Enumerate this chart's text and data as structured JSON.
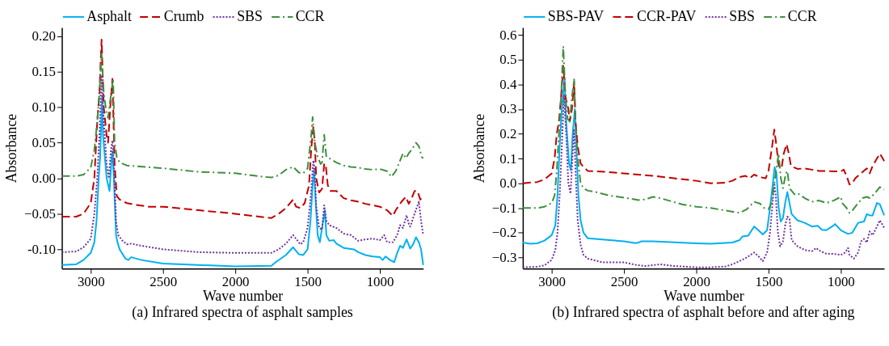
{
  "chart_data": [
    {
      "type": "line",
      "title": "(a) Infrared spectra of asphalt samples",
      "xlabel": "Wave number",
      "ylabel": "Absorbance",
      "legend": "top",
      "grid": false,
      "xlim": [
        3200,
        700
      ],
      "xticks": [
        3000,
        2500,
        2000,
        1500,
        1000
      ],
      "ylim": [
        -0.127,
        0.212
      ],
      "yticks": [
        {
          "value": -0.1,
          "label": "-0.10"
        },
        -0.05,
        {
          "value": 0,
          "label": "0.00"
        },
        0.05,
        {
          "value": 0.1,
          "label": "0.10"
        },
        0.15,
        {
          "value": 0.2,
          "label": "0.20"
        }
      ],
      "series": [
        {
          "name": "Asphalt",
          "color": "#00b0f0",
          "line_style": "solid",
          "x": [
            3200,
            3100,
            3050,
            3000,
            2975,
            2960,
            2945,
            2935,
            2921,
            2915,
            2890,
            2870,
            2855,
            2850,
            2840,
            2825,
            2815,
            2800,
            2760,
            2740,
            2720,
            2650,
            2500,
            2000,
            1750,
            1720,
            1650,
            1600,
            1560,
            1530,
            1500,
            1480,
            1465,
            1455,
            1445,
            1430,
            1415,
            1400,
            1380,
            1370,
            1350,
            1320,
            1300,
            1250,
            1180,
            1150,
            1100,
            1050,
            1000,
            980,
            960,
            930,
            900,
            880,
            860,
            840,
            815,
            790,
            770,
            750,
            730,
            715,
            700
          ],
          "values": [
            -0.122,
            -0.121,
            -0.115,
            -0.105,
            -0.09,
            -0.06,
            0.0,
            0.03,
            0.116,
            0.06,
            0.0,
            -0.018,
            0.03,
            0.038,
            0.0,
            -0.08,
            -0.09,
            -0.1,
            -0.113,
            -0.115,
            -0.111,
            -0.115,
            -0.12,
            -0.124,
            -0.123,
            -0.118,
            -0.108,
            -0.097,
            -0.107,
            -0.108,
            -0.1,
            -0.06,
            -0.01,
            0.012,
            -0.03,
            -0.08,
            -0.09,
            -0.07,
            -0.045,
            -0.08,
            -0.088,
            -0.087,
            -0.092,
            -0.098,
            -0.1,
            -0.104,
            -0.108,
            -0.11,
            -0.111,
            -0.115,
            -0.11,
            -0.115,
            -0.118,
            -0.105,
            -0.095,
            -0.098,
            -0.086,
            -0.099,
            -0.093,
            -0.083,
            -0.09,
            -0.1,
            -0.122
          ]
        },
        {
          "name": "Crumb",
          "color": "#c00000",
          "line_style": "dashed",
          "x": [
            3200,
            3100,
            3050,
            3000,
            2975,
            2955,
            2940,
            2925,
            2910,
            2890,
            2880,
            2865,
            2850,
            2845,
            2835,
            2820,
            2800,
            2750,
            2700,
            2600,
            2500,
            2250,
            2000,
            1800,
            1750,
            1700,
            1650,
            1600,
            1580,
            1550,
            1520,
            1490,
            1475,
            1460,
            1450,
            1440,
            1420,
            1400,
            1385,
            1375,
            1360,
            1340,
            1300,
            1250,
            1200,
            1150,
            1100,
            1050,
            1000,
            950,
            910,
            890,
            850,
            820,
            800,
            780,
            760,
            740,
            720,
            700
          ],
          "values": [
            -0.054,
            -0.054,
            -0.05,
            -0.035,
            0.0,
            0.08,
            0.12,
            0.195,
            0.1,
            0.06,
            0.05,
            0.1,
            0.14,
            0.1,
            0.02,
            -0.025,
            -0.03,
            -0.035,
            -0.037,
            -0.04,
            -0.04,
            -0.045,
            -0.05,
            -0.055,
            -0.056,
            -0.05,
            -0.042,
            -0.03,
            -0.04,
            -0.042,
            -0.035,
            -0.01,
            0.04,
            0.073,
            0.05,
            0.0,
            -0.02,
            -0.015,
            0.02,
            0.02,
            -0.01,
            -0.018,
            -0.018,
            -0.028,
            -0.031,
            -0.033,
            -0.036,
            -0.038,
            -0.04,
            -0.045,
            -0.053,
            -0.045,
            -0.033,
            -0.026,
            -0.036,
            -0.028,
            -0.018,
            -0.018,
            -0.03,
            -0.025
          ]
        },
        {
          "name": "SBS",
          "color": "#7030a0",
          "line_style": "dotted",
          "x": [
            3200,
            3100,
            3050,
            3000,
            2975,
            2955,
            2940,
            2925,
            2910,
            2890,
            2875,
            2860,
            2850,
            2840,
            2825,
            2810,
            2780,
            2750,
            2720,
            2650,
            2500,
            2250,
            2000,
            1750,
            1700,
            1650,
            1600,
            1580,
            1550,
            1530,
            1500,
            1480,
            1460,
            1450,
            1440,
            1420,
            1400,
            1385,
            1370,
            1350,
            1300,
            1250,
            1200,
            1150,
            1100,
            1050,
            1000,
            970,
            950,
            910,
            880,
            860,
            840,
            815,
            800,
            790,
            760,
            730,
            715,
            700
          ],
          "values": [
            -0.104,
            -0.103,
            -0.097,
            -0.085,
            -0.05,
            0.0,
            0.06,
            0.145,
            0.08,
            0.02,
            0.0,
            0.04,
            0.053,
            0.02,
            -0.06,
            -0.08,
            -0.088,
            -0.093,
            -0.092,
            -0.095,
            -0.1,
            -0.104,
            -0.105,
            -0.105,
            -0.1,
            -0.092,
            -0.08,
            -0.085,
            -0.093,
            -0.09,
            -0.07,
            -0.03,
            0.025,
            0.01,
            -0.04,
            -0.07,
            -0.072,
            -0.038,
            -0.06,
            -0.066,
            -0.07,
            -0.078,
            -0.08,
            -0.088,
            -0.086,
            -0.085,
            -0.087,
            -0.08,
            -0.09,
            -0.09,
            -0.08,
            -0.066,
            -0.07,
            -0.052,
            -0.064,
            -0.068,
            -0.05,
            -0.033,
            -0.06,
            -0.08
          ]
        },
        {
          "name": "CCR",
          "color": "#3f8f3f",
          "line_style": "dashdot",
          "x": [
            3200,
            3100,
            3050,
            3000,
            2975,
            2955,
            2940,
            2925,
            2910,
            2890,
            2880,
            2865,
            2845,
            2835,
            2820,
            2800,
            2750,
            2500,
            2250,
            2000,
            1800,
            1750,
            1700,
            1650,
            1600,
            1560,
            1530,
            1500,
            1475,
            1465,
            1450,
            1430,
            1410,
            1400,
            1385,
            1370,
            1340,
            1300,
            1250,
            1200,
            1150,
            1100,
            1050,
            1000,
            950,
            920,
            890,
            860,
            840,
            820,
            800,
            780,
            750,
            730,
            710,
            700
          ],
          "values": [
            0.003,
            0.003,
            0.005,
            0.015,
            0.04,
            0.08,
            0.12,
            0.175,
            0.12,
            0.09,
            0.085,
            0.11,
            0.14,
            0.05,
            0.03,
            0.022,
            0.018,
            0.014,
            0.009,
            0.007,
            0.002,
            0.001,
            0.004,
            0.012,
            0.016,
            0.008,
            0.007,
            0.014,
            0.06,
            0.086,
            0.05,
            0.03,
            0.02,
            0.022,
            0.061,
            0.03,
            0.027,
            0.022,
            0.018,
            0.016,
            0.015,
            0.013,
            0.012,
            0.013,
            0.01,
            0.002,
            0.01,
            0.025,
            0.035,
            0.028,
            0.035,
            0.04,
            0.05,
            0.045,
            0.03,
            0.028
          ]
        }
      ]
    },
    {
      "type": "line",
      "title": "(b) Infrared spectra of asphalt before and after aging",
      "xlabel": "Wave number",
      "ylabel": "Absorbance",
      "legend": "top",
      "grid": false,
      "xlim": [
        3200,
        700
      ],
      "xticks": [
        3000,
        2500,
        2000,
        1500,
        1000
      ],
      "ylim": [
        -0.345,
        0.63
      ],
      "yticks": [
        -0.3,
        -0.2,
        -0.1,
        {
          "value": 0,
          "label": "0.0"
        },
        0.1,
        0.2,
        0.3,
        0.4,
        0.5,
        0.6
      ],
      "series": [
        {
          "name": "SBS-PAV",
          "color": "#00b0f0",
          "line_style": "solid",
          "x": [
            3200,
            3150,
            3100,
            3050,
            3000,
            2975,
            2960,
            2945,
            2930,
            2911,
            2900,
            2880,
            2868,
            2855,
            2840,
            2830,
            2815,
            2800,
            2780,
            2750,
            2600,
            2500,
            2420,
            2400,
            2380,
            2300,
            2000,
            1900,
            1750,
            1700,
            1680,
            1640,
            1600,
            1570,
            1540,
            1510,
            1490,
            1470,
            1458,
            1445,
            1430,
            1415,
            1400,
            1385,
            1370,
            1355,
            1340,
            1300,
            1250,
            1200,
            1160,
            1130,
            1100,
            1060,
            1040,
            1000,
            950,
            920,
            880,
            840,
            820,
            800,
            780,
            750,
            730,
            700
          ],
          "values": [
            -0.24,
            -0.245,
            -0.243,
            -0.232,
            -0.21,
            -0.17,
            -0.05,
            0.15,
            0.3,
            0.427,
            0.25,
            0.08,
            0.053,
            0.2,
            0.3,
            0.15,
            -0.05,
            -0.15,
            -0.2,
            -0.223,
            -0.23,
            -0.235,
            -0.242,
            -0.24,
            -0.235,
            -0.235,
            -0.243,
            -0.245,
            -0.24,
            -0.23,
            -0.215,
            -0.212,
            -0.175,
            -0.19,
            -0.207,
            -0.19,
            -0.1,
            0.0,
            0.065,
            0.04,
            -0.1,
            -0.155,
            -0.14,
            -0.08,
            -0.035,
            -0.08,
            -0.125,
            -0.15,
            -0.16,
            -0.175,
            -0.172,
            -0.188,
            -0.19,
            -0.175,
            -0.165,
            -0.19,
            -0.205,
            -0.2,
            -0.16,
            -0.155,
            -0.125,
            -0.13,
            -0.13,
            -0.08,
            -0.085,
            -0.13
          ]
        },
        {
          "name": "CCR-PAV",
          "color": "#c00000",
          "line_style": "dashed",
          "x": [
            3200,
            3100,
            3050,
            3000,
            2980,
            2965,
            2950,
            2935,
            2920,
            2905,
            2885,
            2875,
            2860,
            2845,
            2835,
            2820,
            2800,
            2780,
            2750,
            2600,
            2500,
            2300,
            2000,
            1900,
            1800,
            1750,
            1700,
            1660,
            1630,
            1600,
            1560,
            1520,
            1500,
            1475,
            1460,
            1445,
            1430,
            1410,
            1395,
            1375,
            1360,
            1345,
            1300,
            1250,
            1200,
            1150,
            1100,
            1050,
            1000,
            980,
            960,
            940,
            920,
            900,
            860,
            820,
            800,
            780,
            750,
            730,
            710,
            700
          ],
          "values": [
            0.0,
            0.005,
            0.015,
            0.04,
            0.1,
            0.2,
            0.25,
            0.35,
            0.475,
            0.35,
            0.3,
            0.25,
            0.3,
            0.41,
            0.25,
            0.15,
            0.08,
            0.065,
            0.05,
            0.045,
            0.04,
            0.03,
            0.01,
            0.0,
            0.002,
            0.01,
            0.025,
            0.03,
            0.02,
            0.035,
            0.025,
            0.02,
            0.05,
            0.15,
            0.217,
            0.15,
            0.07,
            0.06,
            0.12,
            0.158,
            0.12,
            0.07,
            0.058,
            0.06,
            0.055,
            0.05,
            0.05,
            0.048,
            0.048,
            0.055,
            0.03,
            -0.005,
            0.0,
            0.02,
            0.04,
            0.06,
            0.04,
            0.07,
            0.1,
            0.12,
            0.1,
            0.09
          ]
        },
        {
          "name": "SBS",
          "color": "#7030a0",
          "line_style": "dotted",
          "x": [
            3200,
            3100,
            3050,
            3000,
            2975,
            2960,
            2945,
            2930,
            2915,
            2900,
            2885,
            2870,
            2855,
            2845,
            2835,
            2820,
            2800,
            2780,
            2750,
            2650,
            2500,
            2420,
            2350,
            2250,
            2150,
            2000,
            1900,
            1800,
            1750,
            1700,
            1650,
            1600,
            1570,
            1540,
            1510,
            1490,
            1475,
            1460,
            1450,
            1435,
            1420,
            1400,
            1385,
            1370,
            1355,
            1340,
            1300,
            1250,
            1200,
            1170,
            1150,
            1100,
            1050,
            1000,
            970,
            950,
            940,
            910,
            880,
            860,
            840,
            820,
            800,
            780,
            750,
            730,
            710,
            700
          ],
          "values": [
            -0.34,
            -0.338,
            -0.332,
            -0.31,
            -0.27,
            -0.2,
            -0.05,
            0.15,
            0.355,
            0.2,
            0.0,
            -0.042,
            0.12,
            0.22,
            0.05,
            -0.15,
            -0.25,
            -0.29,
            -0.305,
            -0.32,
            -0.32,
            -0.33,
            -0.335,
            -0.328,
            -0.335,
            -0.34,
            -0.34,
            -0.337,
            -0.328,
            -0.315,
            -0.3,
            -0.28,
            -0.295,
            -0.315,
            -0.28,
            -0.2,
            -0.1,
            0.0,
            -0.05,
            -0.2,
            -0.255,
            -0.235,
            -0.17,
            -0.135,
            -0.145,
            -0.23,
            -0.255,
            -0.27,
            -0.275,
            -0.262,
            -0.272,
            -0.285,
            -0.286,
            -0.29,
            -0.28,
            -0.262,
            -0.29,
            -0.305,
            -0.28,
            -0.235,
            -0.225,
            -0.24,
            -0.195,
            -0.21,
            -0.175,
            -0.15,
            -0.17,
            -0.18
          ]
        },
        {
          "name": "CCR",
          "color": "#3f8f3f",
          "line_style": "dashdot",
          "x": [
            3200,
            3100,
            3050,
            3000,
            2980,
            2965,
            2950,
            2935,
            2920,
            2905,
            2890,
            2875,
            2860,
            2845,
            2835,
            2820,
            2800,
            2780,
            2750,
            2700,
            2600,
            2500,
            2400,
            2350,
            2300,
            2250,
            2100,
            2000,
            1900,
            1800,
            1700,
            1650,
            1600,
            1560,
            1530,
            1500,
            1480,
            1460,
            1430,
            1415,
            1400,
            1380,
            1370,
            1355,
            1320,
            1300,
            1250,
            1200,
            1150,
            1100,
            1050,
            1000,
            990,
            960,
            940,
            920,
            880,
            850,
            820,
            800,
            780,
            750,
            730,
            700
          ],
          "values": [
            -0.1,
            -0.1,
            -0.095,
            -0.08,
            -0.05,
            0.05,
            0.2,
            0.35,
            0.555,
            0.35,
            0.26,
            0.25,
            0.35,
            0.42,
            0.25,
            0.1,
            0.0,
            -0.02,
            -0.03,
            -0.035,
            -0.05,
            -0.058,
            -0.068,
            -0.065,
            -0.055,
            -0.06,
            -0.085,
            -0.095,
            -0.1,
            -0.11,
            -0.12,
            -0.105,
            -0.075,
            -0.082,
            -0.1,
            -0.105,
            -0.08,
            0.0,
            0.12,
            0.02,
            -0.02,
            0.04,
            0.05,
            -0.02,
            -0.045,
            -0.04,
            -0.06,
            -0.075,
            -0.07,
            -0.08,
            -0.07,
            -0.055,
            -0.08,
            -0.1,
            -0.12,
            -0.11,
            -0.08,
            -0.06,
            -0.055,
            -0.06,
            -0.05,
            -0.03,
            -0.015,
            -0.025
          ]
        }
      ]
    }
  ]
}
